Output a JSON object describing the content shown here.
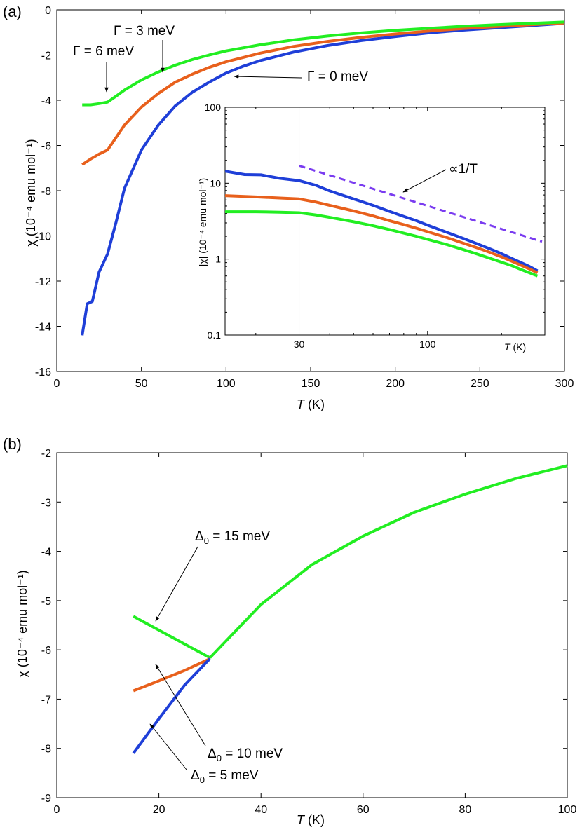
{
  "chart_data": [
    {
      "panel_label": "(a)",
      "type": "line",
      "xlabel_italic": "T",
      "xlabel_unit": " (K)",
      "ylabel": "χ (10⁻⁴ emu mol⁻¹)",
      "xlim": [
        0,
        300
      ],
      "ylim": [
        -16,
        0
      ],
      "xticks": [
        0,
        50,
        100,
        150,
        200,
        250,
        300
      ],
      "yticks": [
        0,
        -2,
        -4,
        -6,
        -8,
        -10,
        -12,
        -14,
        -16
      ],
      "colors": {
        "gamma0": "#1f3fd8",
        "gamma3": "#e8601c",
        "gamma6": "#22ee22",
        "guide": "#7a3cf0",
        "vline": "#000000"
      },
      "series": [
        {
          "key": "gamma0",
          "name": "Γ = 0 meV",
          "color": "#1f3fd8",
          "x": [
            15,
            18,
            21,
            25,
            30,
            35,
            40,
            50,
            60,
            70,
            80,
            90,
            100,
            110,
            120,
            140,
            160,
            180,
            200,
            220,
            240,
            260,
            280,
            300
          ],
          "y": [
            -14.4,
            -13.0,
            -12.9,
            -11.6,
            -10.8,
            -9.4,
            -7.9,
            -6.2,
            -5.1,
            -4.25,
            -3.65,
            -3.2,
            -2.8,
            -2.5,
            -2.25,
            -1.87,
            -1.58,
            -1.36,
            -1.18,
            -1.02,
            -0.9,
            -0.8,
            -0.7,
            -0.6
          ]
        },
        {
          "key": "gamma3",
          "name": "Γ = 3 meV",
          "color": "#e8601c",
          "x": [
            15,
            20,
            25,
            30,
            35,
            40,
            50,
            60,
            70,
            80,
            90,
            100,
            120,
            140,
            160,
            180,
            200,
            220,
            240,
            260,
            280,
            300
          ],
          "y": [
            -6.85,
            -6.6,
            -6.38,
            -6.2,
            -5.65,
            -5.1,
            -4.3,
            -3.7,
            -3.2,
            -2.85,
            -2.55,
            -2.3,
            -1.92,
            -1.62,
            -1.4,
            -1.22,
            -1.07,
            -0.94,
            -0.83,
            -0.74,
            -0.66,
            -0.58
          ]
        },
        {
          "key": "gamma6",
          "name": "Γ = 6 meV",
          "color": "#22ee22",
          "x": [
            15,
            20,
            25,
            30,
            35,
            40,
            50,
            60,
            70,
            80,
            90,
            100,
            120,
            140,
            160,
            180,
            200,
            220,
            240,
            260,
            280,
            300
          ],
          "y": [
            -4.2,
            -4.2,
            -4.15,
            -4.08,
            -3.82,
            -3.55,
            -3.1,
            -2.75,
            -2.45,
            -2.2,
            -2.0,
            -1.82,
            -1.55,
            -1.33,
            -1.16,
            -1.02,
            -0.91,
            -0.82,
            -0.73,
            -0.66,
            -0.6,
            -0.54
          ]
        }
      ],
      "annotations": [
        {
          "key": "g6",
          "label": "Γ = 6 meV"
        },
        {
          "key": "g3",
          "label": "Γ = 3 meV"
        },
        {
          "key": "g0",
          "label": "Γ = 0 meV"
        }
      ],
      "inset": {
        "type": "line",
        "xscale": "log",
        "yscale": "log",
        "xlim": [
          15,
          300
        ],
        "ylim": [
          0.1,
          100
        ],
        "xticks": [
          30,
          100
        ],
        "yticks": [
          0.1,
          1,
          10,
          100
        ],
        "ytick_labels": [
          "0.1",
          "1",
          "10",
          "100"
        ],
        "xlabel_italic": "T",
        "xlabel_unit": " (K)",
        "ylabel": "|χ| (10⁻⁴ emu mol⁻¹)",
        "vline_x": 30,
        "guide_label": "∝1/T",
        "guide_x": [
          30,
          300
        ],
        "guide_y": [
          17.0,
          1.7
        ],
        "series_keys": [
          "gamma0",
          "gamma3",
          "gamma6"
        ]
      }
    },
    {
      "panel_label": "(b)",
      "type": "line",
      "xlabel_italic": "T",
      "xlabel_unit": " (K)",
      "ylabel": "χ (10⁻⁴ emu mol⁻¹)",
      "xlim": [
        0,
        100
      ],
      "ylim": [
        -9,
        -2
      ],
      "xticks": [
        0,
        20,
        40,
        60,
        80,
        100
      ],
      "yticks": [
        -2,
        -3,
        -4,
        -5,
        -6,
        -7,
        -8,
        -9
      ],
      "series": [
        {
          "key": "delta15",
          "name": "Δ₀ = 15 meV",
          "color": "#22ee22",
          "x": [
            15,
            20,
            25,
            30
          ],
          "y": [
            -5.32,
            -5.6,
            -5.88,
            -6.16
          ]
        },
        {
          "key": "delta10",
          "name": "Δ₀ = 10 meV",
          "color": "#e8601c",
          "x": [
            15,
            20,
            25,
            30
          ],
          "y": [
            -6.83,
            -6.63,
            -6.42,
            -6.18
          ]
        },
        {
          "key": "delta5",
          "name": "Δ₀ = 5 meV",
          "color": "#1f3fd8",
          "x": [
            15,
            20,
            25,
            30
          ],
          "y": [
            -8.1,
            -7.4,
            -6.72,
            -6.18
          ]
        },
        {
          "key": "common",
          "name": "",
          "color": "#22ee22",
          "x": [
            30,
            35,
            40,
            50,
            60,
            70,
            80,
            90,
            100
          ],
          "y": [
            -6.16,
            -5.62,
            -5.08,
            -4.27,
            -3.69,
            -3.21,
            -2.84,
            -2.52,
            -2.26
          ]
        }
      ],
      "annotations": [
        {
          "key": "d15",
          "symbol": "Δ",
          "sub": "0",
          "text": " = 15 meV"
        },
        {
          "key": "d10",
          "symbol": "Δ",
          "sub": "0",
          "text": " = 10 meV"
        },
        {
          "key": "d5",
          "symbol": "Δ",
          "sub": "0",
          "text": " = 5 meV"
        }
      ]
    }
  ]
}
